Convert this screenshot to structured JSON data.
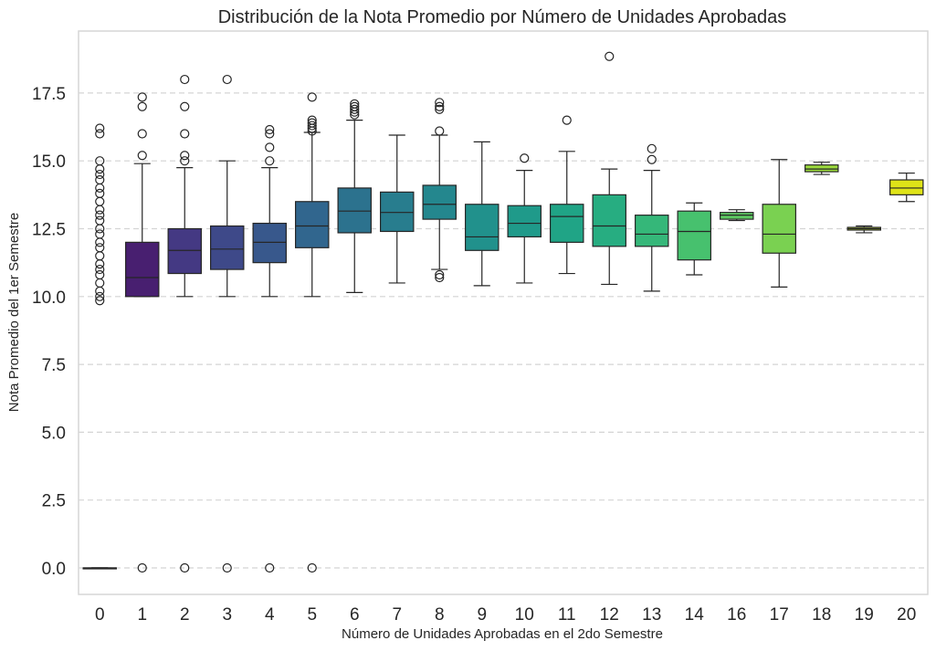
{
  "chart_data": {
    "type": "box",
    "title": "Distribución de la Nota Promedio por Número de Unidades Aprobadas",
    "xlabel": "Número de Unidades Aprobadas en el 2do Semestre",
    "ylabel": "Nota Promedio del 1er Semestre",
    "ylim": [
      -1,
      19.8
    ],
    "yticks": [
      "0.0",
      "2.5",
      "5.0",
      "7.5",
      "10.0",
      "12.5",
      "15.0",
      "17.5"
    ],
    "grid": "horizontal dashed",
    "categories": [
      "0",
      "1",
      "2",
      "3",
      "4",
      "5",
      "6",
      "7",
      "8",
      "9",
      "10",
      "11",
      "12",
      "13",
      "14",
      "16",
      "17",
      "18",
      "19",
      "20"
    ],
    "colors": [
      "#440154",
      "#482173",
      "#433e85",
      "#38588c",
      "#2d708e",
      "#25858e",
      "#1e9b8a",
      "#2ab07f",
      "#52c569",
      "#86d549",
      "#c2df23",
      "#fde725"
    ],
    "boxes": [
      {
        "category": "0",
        "q1": 0,
        "median": 0,
        "q3": 0,
        "whislo": 0,
        "whishi": 0,
        "color": "#450457",
        "fliers": [
          16.2,
          16.0,
          15.0,
          14.7,
          14.5,
          14.3,
          14.0,
          13.8,
          13.5,
          13.2,
          13.0,
          12.8,
          12.5,
          12.3,
          12.0,
          11.8,
          11.5,
          11.2,
          11.0,
          10.8,
          10.5,
          10.2,
          10.0,
          9.85
        ]
      },
      {
        "category": "1",
        "q1": 10.0,
        "median": 10.7,
        "q3": 12.0,
        "whislo": 10.0,
        "whishi": 14.9,
        "color": "#481f70",
        "fliers": [
          17.35,
          17.0,
          16.0,
          15.2,
          0
        ]
      },
      {
        "category": "2",
        "q1": 10.85,
        "median": 11.7,
        "q3": 12.5,
        "whislo": 10.0,
        "whishi": 14.75,
        "color": "#443983",
        "fliers": [
          18.0,
          17.0,
          16.0,
          15.2,
          15.0,
          0
        ]
      },
      {
        "category": "3",
        "q1": 11.0,
        "median": 11.75,
        "q3": 12.6,
        "whislo": 10.0,
        "whishi": 15.0,
        "color": "#3e4989",
        "fliers": [
          18.0,
          0
        ]
      },
      {
        "category": "4",
        "q1": 11.25,
        "median": 12.0,
        "q3": 12.7,
        "whislo": 10.0,
        "whishi": 14.75,
        "color": "#38588c",
        "fliers": [
          16.15,
          16.0,
          15.5,
          15.0,
          0
        ]
      },
      {
        "category": "5",
        "q1": 11.8,
        "median": 12.6,
        "q3": 13.5,
        "whislo": 10.0,
        "whishi": 16.05,
        "color": "#31668e",
        "fliers": [
          17.35,
          16.5,
          16.4,
          16.3,
          16.2,
          16.1,
          0
        ]
      },
      {
        "category": "6",
        "q1": 12.35,
        "median": 13.15,
        "q3": 14.0,
        "whislo": 10.15,
        "whishi": 16.5,
        "color": "#2c728e",
        "fliers": [
          17.1,
          17.0,
          16.9,
          16.8,
          16.7
        ]
      },
      {
        "category": "7",
        "q1": 12.4,
        "median": 13.1,
        "q3": 13.85,
        "whislo": 10.5,
        "whishi": 15.95,
        "color": "#287d8e",
        "fliers": []
      },
      {
        "category": "8",
        "q1": 12.85,
        "median": 13.4,
        "q3": 14.1,
        "whislo": 11.0,
        "whishi": 15.95,
        "color": "#24878e",
        "fliers": [
          17.15,
          17.0,
          16.9,
          16.1,
          10.8,
          10.7
        ]
      },
      {
        "category": "9",
        "q1": 11.7,
        "median": 12.2,
        "q3": 13.4,
        "whislo": 10.4,
        "whishi": 15.7,
        "color": "#21918c",
        "fliers": []
      },
      {
        "category": "10",
        "q1": 12.2,
        "median": 12.7,
        "q3": 13.35,
        "whislo": 10.5,
        "whishi": 14.65,
        "color": "#1f9a8a",
        "fliers": [
          15.1
        ]
      },
      {
        "category": "11",
        "q1": 12.0,
        "median": 12.95,
        "q3": 13.4,
        "whislo": 10.85,
        "whishi": 15.35,
        "color": "#20a486",
        "fliers": [
          16.5
        ]
      },
      {
        "category": "12",
        "q1": 11.85,
        "median": 12.6,
        "q3": 13.75,
        "whislo": 10.45,
        "whishi": 14.7,
        "color": "#27ad81",
        "fliers": [
          18.85
        ]
      },
      {
        "category": "13",
        "q1": 11.85,
        "median": 12.3,
        "q3": 13.0,
        "whislo": 10.2,
        "whishi": 14.65,
        "color": "#35b779",
        "fliers": [
          15.45,
          15.05
        ]
      },
      {
        "category": "14",
        "q1": 11.35,
        "median": 12.4,
        "q3": 13.15,
        "whislo": 10.8,
        "whishi": 13.45,
        "color": "#47c16e",
        "fliers": []
      },
      {
        "category": "16",
        "q1": 12.85,
        "median": 13.0,
        "q3": 13.1,
        "whislo": 12.8,
        "whishi": 13.2,
        "color": "#5ec962",
        "fliers": []
      },
      {
        "category": "17",
        "q1": 11.6,
        "median": 12.3,
        "q3": 13.4,
        "whislo": 10.35,
        "whishi": 15.05,
        "color": "#7ad151",
        "fliers": []
      },
      {
        "category": "18",
        "q1": 14.6,
        "median": 14.7,
        "q3": 14.85,
        "whislo": 14.5,
        "whishi": 14.95,
        "color": "#9bd93c",
        "fliers": []
      },
      {
        "category": "19",
        "q1": 12.45,
        "median": 12.5,
        "q3": 12.55,
        "whislo": 12.35,
        "whishi": 12.6,
        "color": "#bddf26",
        "fliers": []
      },
      {
        "category": "20",
        "q1": 13.75,
        "median": 14.0,
        "q3": 14.3,
        "whislo": 13.5,
        "whishi": 14.55,
        "color": "#dfe318",
        "fliers": []
      }
    ]
  }
}
